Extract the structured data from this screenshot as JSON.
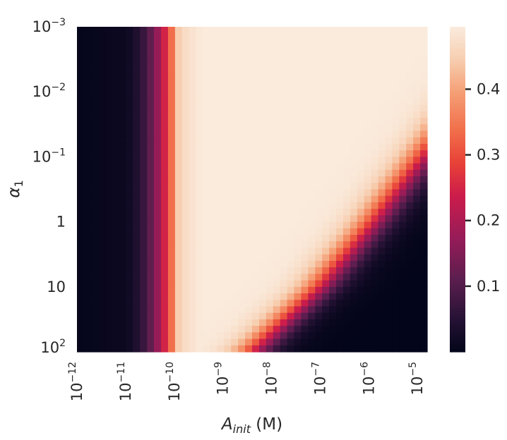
{
  "chart_data": {
    "type": "heatmap",
    "title": "",
    "xlabel": "A_init (M)",
    "ylabel": "α_1",
    "x_scale": "log",
    "y_scale": "log",
    "x_range": [
      1e-12,
      1.585e-05
    ],
    "y_range": [
      0.001,
      100
    ],
    "y_inverted": true,
    "grid": false,
    "x_tick_values": [
      1e-12,
      1e-11,
      1e-10,
      1e-09,
      1e-08,
      1e-07,
      1e-06,
      1e-05
    ],
    "x_tick_labels": [
      {
        "base": "10",
        "exp": "−12"
      },
      {
        "base": "10",
        "exp": "−11"
      },
      {
        "base": "10",
        "exp": "−10"
      },
      {
        "base": "10",
        "exp": "−9"
      },
      {
        "base": "10",
        "exp": "−8"
      },
      {
        "base": "10",
        "exp": "−7"
      },
      {
        "base": "10",
        "exp": "−6"
      },
      {
        "base": "10",
        "exp": "−5"
      }
    ],
    "y_tick_values": [
      0.001,
      0.01,
      0.1,
      1,
      10,
      100
    ],
    "y_tick_labels": [
      {
        "base": "10",
        "exp": "−3"
      },
      {
        "base": "10",
        "exp": "−2"
      },
      {
        "base": "10",
        "exp": "−1"
      },
      {
        "base": "1",
        "exp": ""
      },
      {
        "base": "10",
        "exp": ""
      },
      {
        "base": "10",
        "exp": "2"
      }
    ],
    "colorbar": {
      "colormap": "rocket",
      "range": [
        0.0,
        0.495
      ],
      "ticks": [
        0.1,
        0.2,
        0.3,
        0.4
      ],
      "tick_labels": [
        "0.1",
        "0.2",
        "0.3",
        "0.4"
      ]
    },
    "grid_size": {
      "cols": 50,
      "rows": 50
    },
    "value_model": {
      "max": 0.495,
      "left_ramp": {
        "start_log10_A": -11.2,
        "end_log10_A": -9.9,
        "values": [
          0.0,
          0.1,
          0.25,
          0.38
        ]
      },
      "right_front_log10_A_at_log10_alpha": [
        [
          -1,
          -4.9
        ],
        [
          0,
          -5.9
        ],
        [
          1,
          -7.0
        ],
        [
          2,
          -8.4
        ]
      ],
      "front_width_decades": 0.55
    }
  }
}
